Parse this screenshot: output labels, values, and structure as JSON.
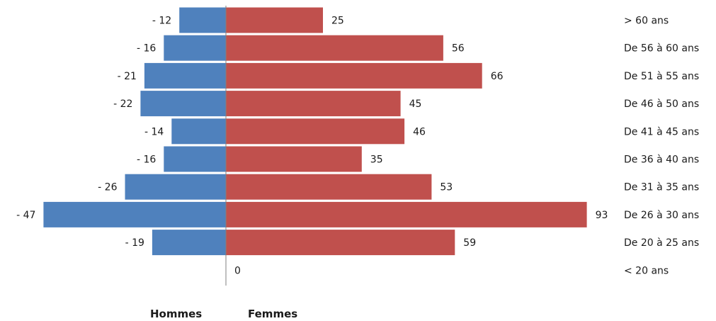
{
  "chart_data": {
    "type": "bar",
    "orientation": "horizontal",
    "categories": [
      "> 60 ans",
      "De 56 à 60 ans",
      "De 51 à 55 ans",
      "De 46 à 50 ans",
      "De 41 à 45 ans",
      "De 36 à 40 ans",
      "De 31 à 35 ans",
      "De 26 à 30 ans",
      "De 20 à 25 ans",
      "< 20 ans"
    ],
    "series": [
      {
        "name": "Hommes",
        "color": "#4f81bd",
        "values": [
          -12,
          -16,
          -21,
          -22,
          -14,
          -16,
          -26,
          -47,
          -19,
          0
        ],
        "labels": [
          "- 12",
          "- 16",
          "- 21",
          "- 22",
          "- 14",
          "- 16",
          "- 26",
          "- 47",
          "- 19",
          ""
        ]
      },
      {
        "name": "Femmes",
        "color": "#c0504d",
        "values": [
          25,
          56,
          66,
          45,
          46,
          35,
          53,
          93,
          59,
          0
        ],
        "labels": [
          "25",
          "56",
          "66",
          "45",
          "46",
          "35",
          "53",
          "93",
          "59",
          "0"
        ]
      }
    ],
    "xlim": [
      -47,
      93
    ],
    "grid": false,
    "legend_position": "bottom"
  }
}
